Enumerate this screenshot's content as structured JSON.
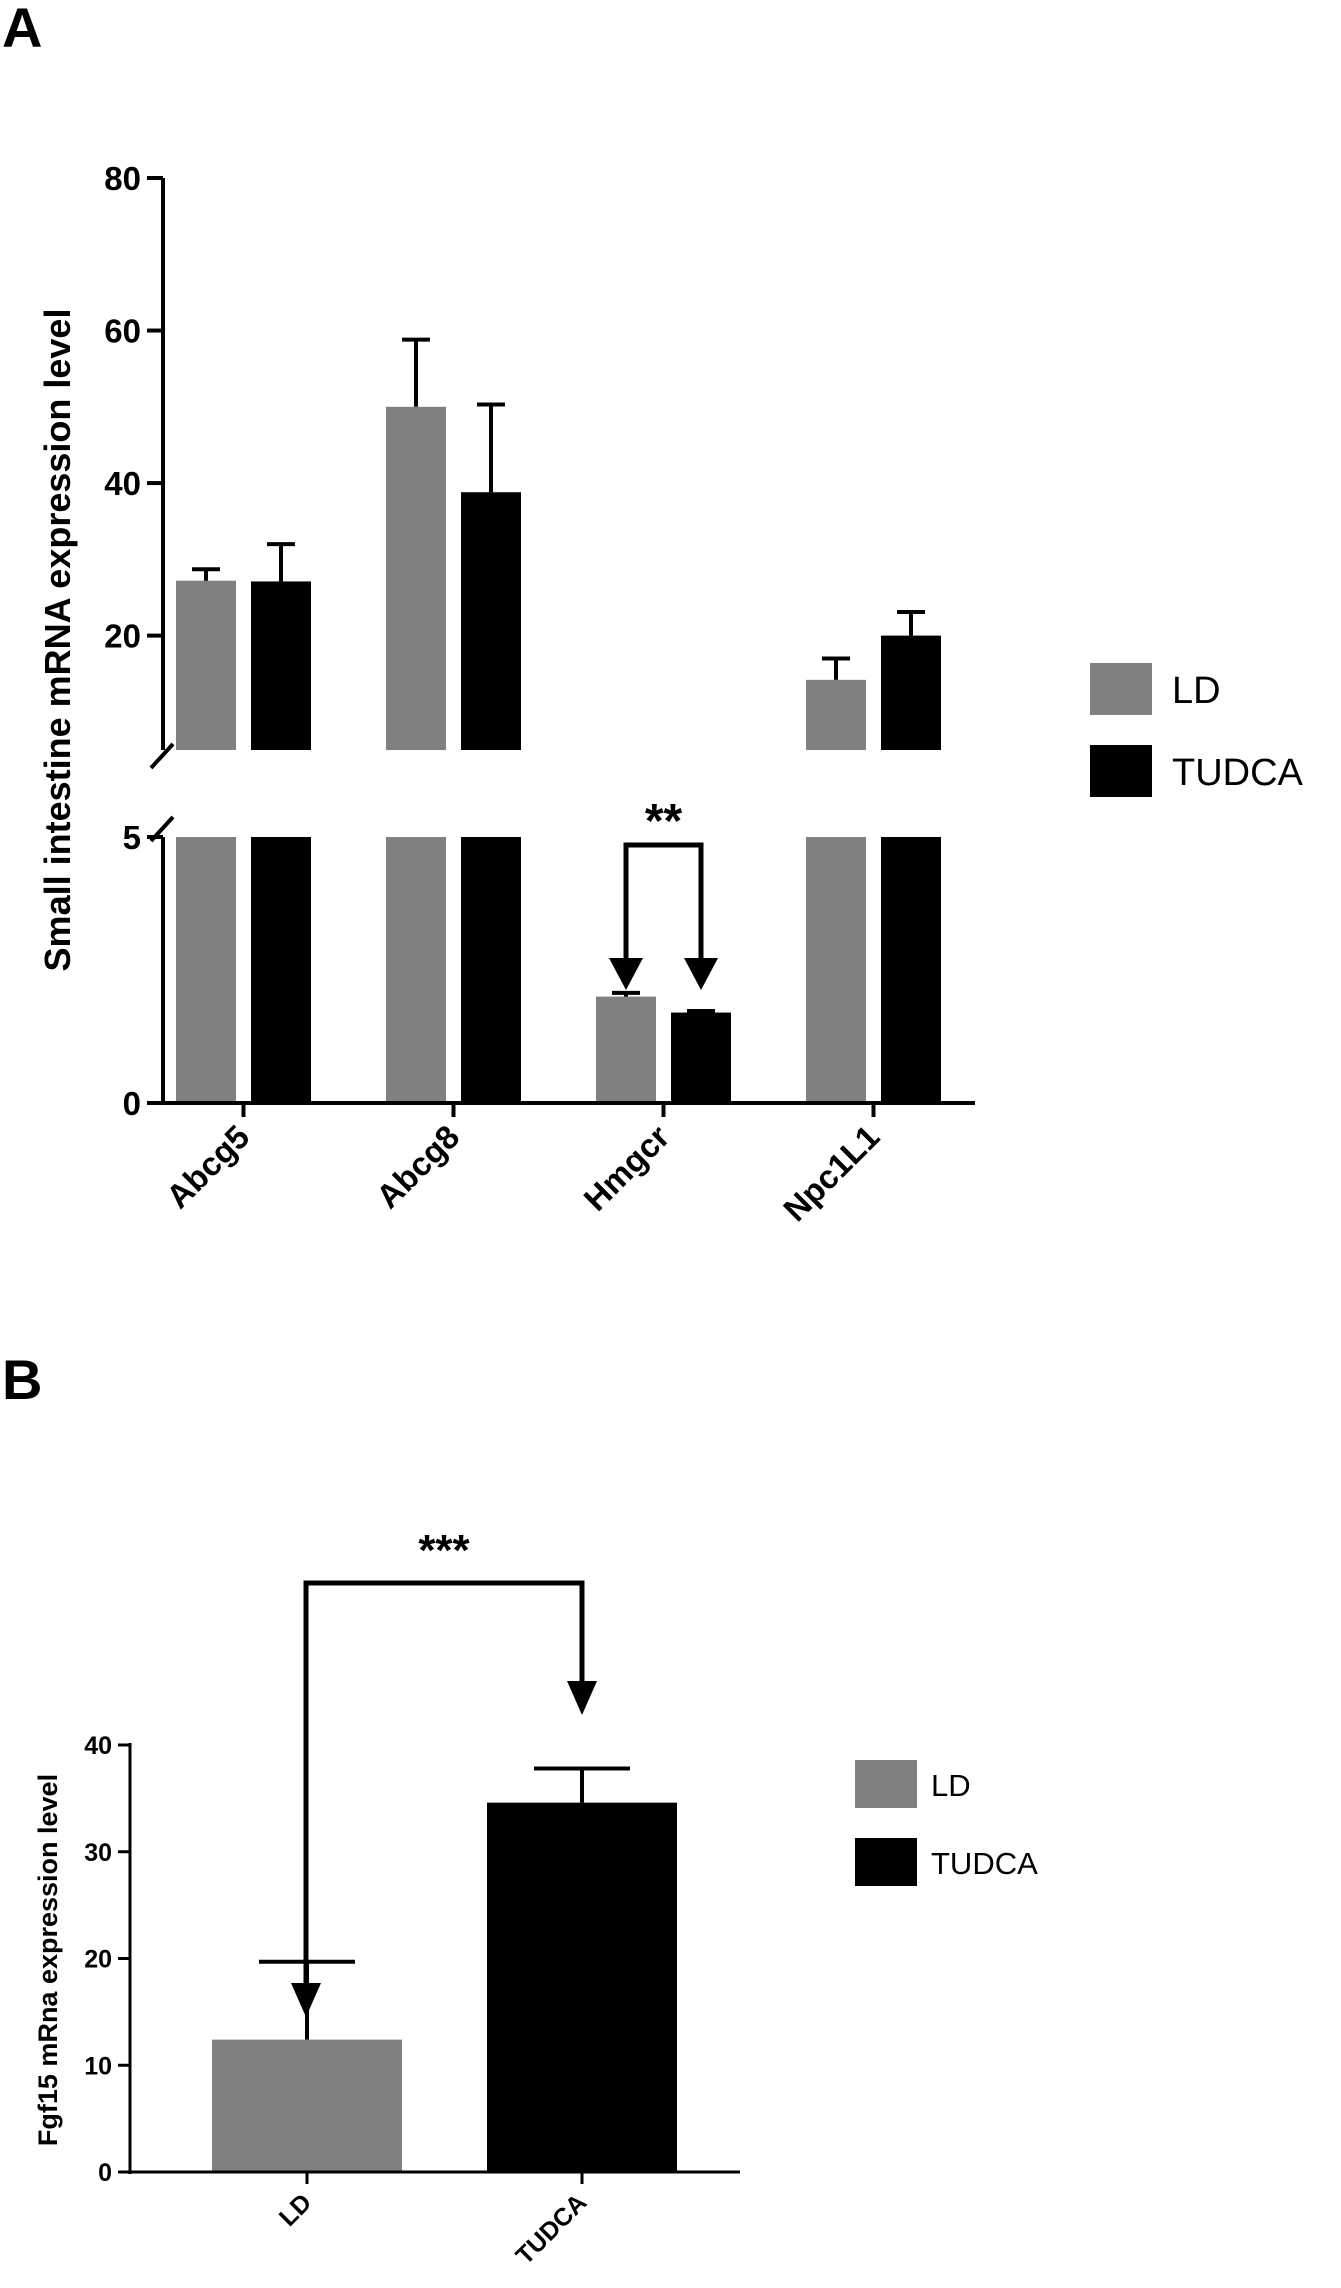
{
  "panels": {
    "a_label": "A",
    "b_label": "B"
  },
  "colors": {
    "LD": "#808080",
    "TUDCA": "#000000"
  },
  "chart_data": [
    {
      "type": "bar",
      "panel": "A",
      "ylabel": "Small intestine mRNA expression level",
      "categories": [
        "Abcg5",
        "Abcg8",
        "Hmgcr",
        "Npc1L1"
      ],
      "series": [
        {
          "name": "LD",
          "values": [
            27.2,
            50.0,
            2.0,
            14.2
          ],
          "errors": [
            1.5,
            8.8,
            0.07,
            2.8
          ]
        },
        {
          "name": "TUDCA",
          "values": [
            27.1,
            38.8,
            1.7,
            20.0
          ],
          "errors": [
            4.9,
            11.5,
            0.03,
            3.1
          ]
        }
      ],
      "y_axis_broken": true,
      "lower_segment": {
        "ylim": [
          0,
          5
        ],
        "ticks": [
          "0",
          "5"
        ]
      },
      "upper_segment": {
        "ylim": [
          5,
          80
        ],
        "ticks": [
          "20",
          "40",
          "60",
          "80"
        ]
      },
      "legend": [
        "LD",
        "TUDCA"
      ],
      "legend_position": "right",
      "annotation": {
        "text": "**",
        "between": [
          "LD",
          "TUDCA"
        ],
        "category": "Hmgcr"
      }
    },
    {
      "type": "bar",
      "panel": "B",
      "ylabel": "Fgf15 mRna expression level",
      "categories": [
        "LD",
        "TUDCA"
      ],
      "values": [
        12.4,
        34.6
      ],
      "errors": [
        7.3,
        3.2
      ],
      "ylim": [
        0,
        40
      ],
      "yticks": [
        "0",
        "10",
        "20",
        "30",
        "40"
      ],
      "legend": [
        "LD",
        "TUDCA"
      ],
      "legend_position": "right",
      "annotation": {
        "text": "***",
        "between": [
          "LD",
          "TUDCA"
        ]
      }
    }
  ]
}
